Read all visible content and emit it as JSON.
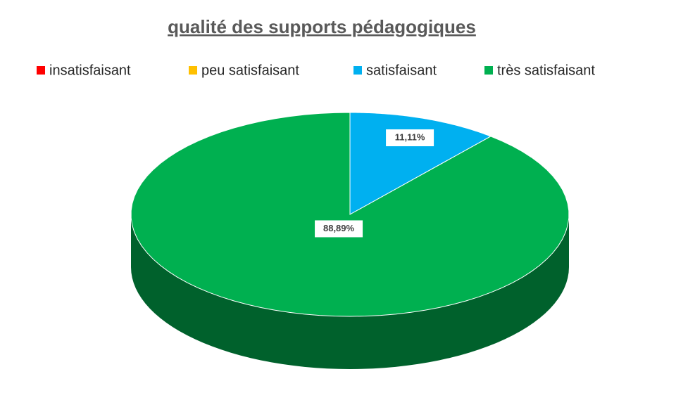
{
  "chart_data": {
    "type": "pie3d",
    "title": "qualité des supports pédagogiques",
    "categories": [
      "insatisfaisant",
      "peu satisfaisant",
      "satisfaisant",
      "très satisfaisant"
    ],
    "values": [
      0,
      0,
      11.11,
      88.89
    ],
    "value_labels": [
      null,
      null,
      "11,11%",
      "88,89%"
    ],
    "colors": [
      "#ff0000",
      "#ffc000",
      "#00b0f0",
      "#00b050"
    ],
    "legend": "top"
  }
}
